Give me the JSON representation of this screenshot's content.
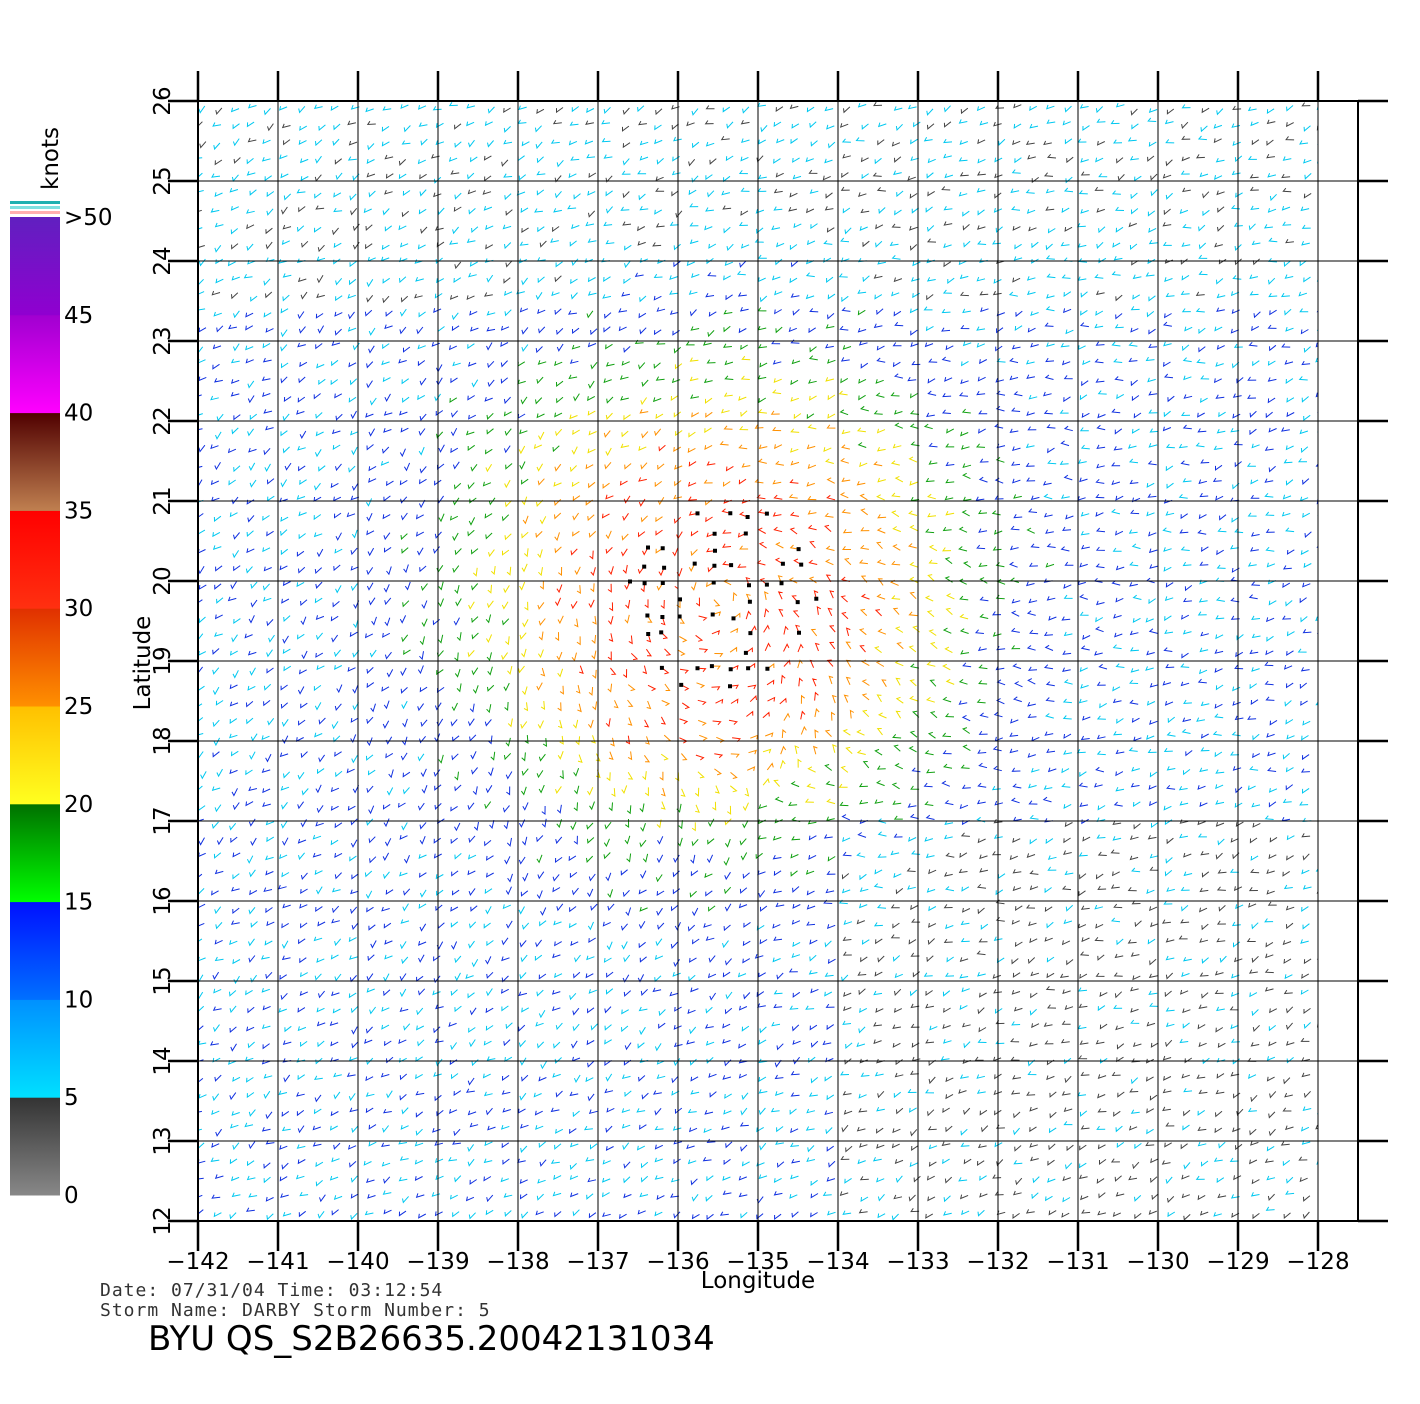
{
  "map": {
    "x_axis_title": "Longitude",
    "y_axis_title": "Latitude",
    "lon_range": [
      -142,
      -127.5
    ],
    "lat_range": [
      12,
      26
    ],
    "lon_ticks": [
      "−142",
      "−141",
      "−140",
      "−139",
      "−138",
      "−137",
      "−136",
      "−135",
      "−134",
      "−133",
      "−132",
      "−131",
      "−130",
      "−129",
      "−128"
    ],
    "lat_ticks": [
      "12",
      "13",
      "14",
      "15",
      "16",
      "17",
      "18",
      "19",
      "20",
      "21",
      "22",
      "23",
      "24",
      "25",
      "26"
    ],
    "grid": true,
    "storm_center_approx": {
      "lon": -135.5,
      "lat": 19.8
    }
  },
  "colorbar": {
    "units": "knots",
    "labels": [
      ">50",
      "45",
      "40",
      "35",
      "30",
      "25",
      "20",
      "15",
      "10",
      "5",
      "0"
    ],
    "bands": [
      {
        "from": 0,
        "to": 5,
        "color_top": "#333333",
        "color_bottom": "#888888"
      },
      {
        "from": 5,
        "to": 10,
        "color_top": "#0090ff",
        "color_bottom": "#00e0ff"
      },
      {
        "from": 10,
        "to": 15,
        "color_top": "#0010ff",
        "color_bottom": "#0070ff"
      },
      {
        "from": 15,
        "to": 20,
        "color_top": "#007000",
        "color_bottom": "#00ff00"
      },
      {
        "from": 20,
        "to": 25,
        "color_top": "#ffc000",
        "color_bottom": "#ffff20"
      },
      {
        "from": 25,
        "to": 30,
        "color_top": "#e03000",
        "color_bottom": "#ff9000"
      },
      {
        "from": 30,
        "to": 35,
        "color_top": "#ff0000",
        "color_bottom": "#ff3010"
      },
      {
        "from": 35,
        "to": 40,
        "color_top": "#500000",
        "color_bottom": "#c08050"
      },
      {
        "from": 40,
        "to": 45,
        "color_top": "#a000d0",
        "color_bottom": "#ff00ff"
      },
      {
        "from": 45,
        "to": 50,
        "color_top": "#6020c0",
        "color_bottom": "#9000d0"
      }
    ],
    "overflow_colors": [
      "#20b0b0",
      "#80e0e0",
      "#ffb0b0"
    ]
  },
  "meta": {
    "date_line": "Date: 07/31/04   Time: 03:12:54",
    "storm_line": "Storm Name: DARBY   Storm Number: 5",
    "file_id": "BYU QS_S2B26635.20042131034"
  }
}
